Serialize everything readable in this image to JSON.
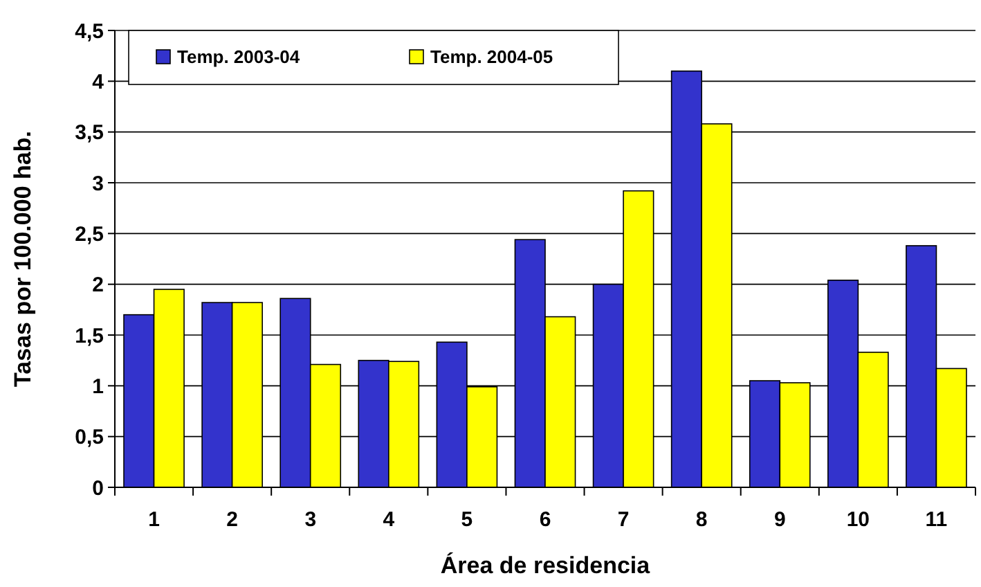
{
  "chart_data": {
    "type": "bar",
    "xlabel": "Área de residencia",
    "ylabel": "Tasas por 100.000 hab.",
    "categories": [
      "1",
      "2",
      "3",
      "4",
      "5",
      "6",
      "7",
      "8",
      "9",
      "10",
      "11"
    ],
    "series": [
      {
        "name": "Temp. 2003-04",
        "color": "#3333cc",
        "values": [
          1.7,
          1.82,
          1.86,
          1.25,
          1.43,
          2.44,
          2.0,
          4.1,
          1.05,
          2.04,
          2.38
        ]
      },
      {
        "name": "Temp. 2004-05",
        "color": "#ffff00",
        "values": [
          1.95,
          1.82,
          1.21,
          1.24,
          0.99,
          1.68,
          2.92,
          3.58,
          1.03,
          1.33,
          1.17
        ]
      }
    ],
    "ylim": [
      0,
      4.5
    ],
    "yticks": [
      0,
      {
        "value": 0.5,
        "label": "0,5"
      },
      1,
      {
        "value": 1.5,
        "label": "1,5"
      },
      2,
      {
        "value": 2.5,
        "label": "2,5"
      },
      3,
      {
        "value": 3.5,
        "label": "3,5"
      },
      4,
      {
        "value": 4.5,
        "label": "4,5"
      }
    ],
    "grid": "y",
    "legend": "top left"
  }
}
